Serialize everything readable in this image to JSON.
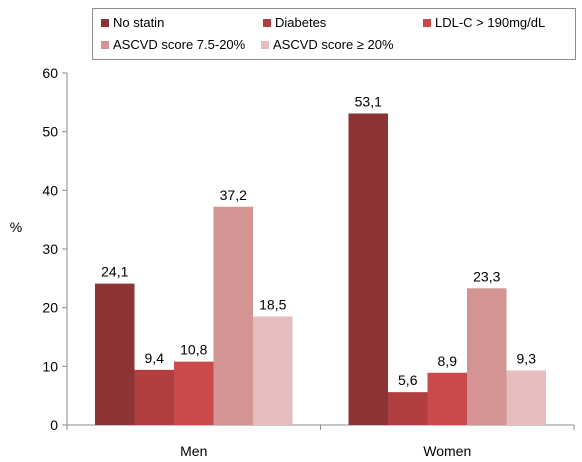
{
  "chart_data": {
    "type": "bar",
    "categories": [
      "Men",
      "Women"
    ],
    "series": [
      {
        "name": "No statin",
        "color": "#8c3434",
        "values": [
          24.1,
          53.1
        ],
        "labels": [
          "24,1",
          "53,1"
        ]
      },
      {
        "name": "Diabetes",
        "color": "#b13f3f",
        "values": [
          9.4,
          5.6
        ],
        "labels": [
          "9,4",
          "5,6"
        ]
      },
      {
        "name": "LDL-C > 190mg/dL",
        "color": "#c84a4a",
        "values": [
          10.8,
          8.9
        ],
        "labels": [
          "10,8",
          "8,9"
        ]
      },
      {
        "name": "ASCVD score 7.5-20%",
        "color": "#d49494",
        "values": [
          37.2,
          23.3
        ],
        "labels": [
          "37,2",
          "23,3"
        ]
      },
      {
        "name": "ASCVD score ≥ 20%",
        "color": "#e6bcbc",
        "values": [
          18.5,
          9.3
        ],
        "labels": [
          "18,5",
          "9,3"
        ]
      }
    ],
    "ylabel": "%",
    "xlabel": "",
    "ylim": [
      0,
      60
    ],
    "yticks": [
      "0",
      "10",
      "20",
      "30",
      "40",
      "50",
      "60"
    ],
    "legend_position": "top",
    "grid": false
  }
}
